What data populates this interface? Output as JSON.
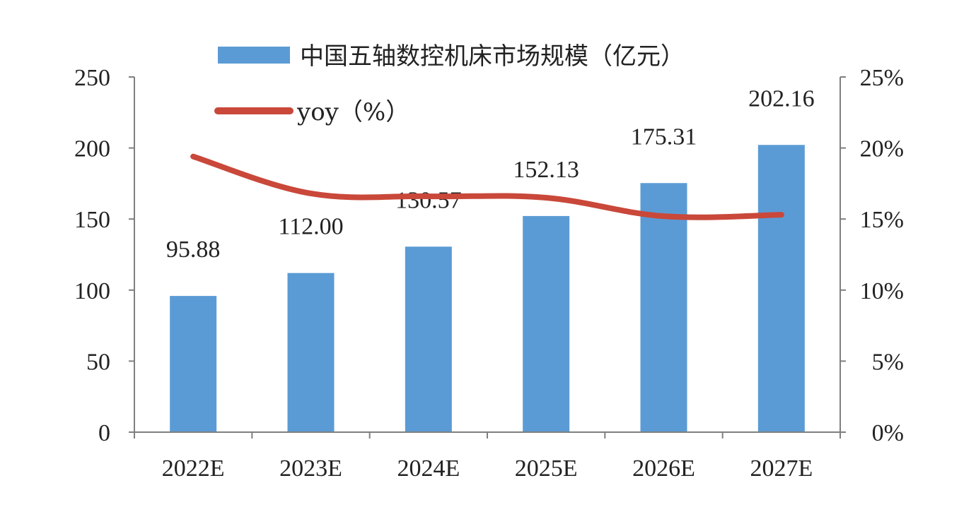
{
  "chart_data": {
    "type": "bar",
    "categories": [
      "2022E",
      "2023E",
      "2024E",
      "2025E",
      "2026E",
      "2027E"
    ],
    "series": [
      {
        "name": "中国五轴数控机床市场规模（亿元）",
        "type": "bar",
        "axis": "left",
        "color": "#5B9BD5",
        "values": [
          95.88,
          112.0,
          130.57,
          152.13,
          175.31,
          202.16
        ],
        "labels": [
          "95.88",
          "112.00",
          "130.57",
          "152.13",
          "175.31",
          "202.16"
        ]
      },
      {
        "name": "yoy（%）",
        "type": "line",
        "axis": "right",
        "color": "#C9483A",
        "values": [
          19.4,
          16.8,
          16.6,
          16.5,
          15.2,
          15.3
        ]
      }
    ],
    "y_left": {
      "ylim": [
        0,
        250
      ],
      "ticks": [
        "0",
        "50",
        "100",
        "150",
        "200",
        "250"
      ]
    },
    "y_right": {
      "ylim": [
        0,
        25
      ],
      "ticks": [
        "0%",
        "5%",
        "10%",
        "15%",
        "20%",
        "25%"
      ]
    },
    "legend_position": "top",
    "grid": false
  }
}
